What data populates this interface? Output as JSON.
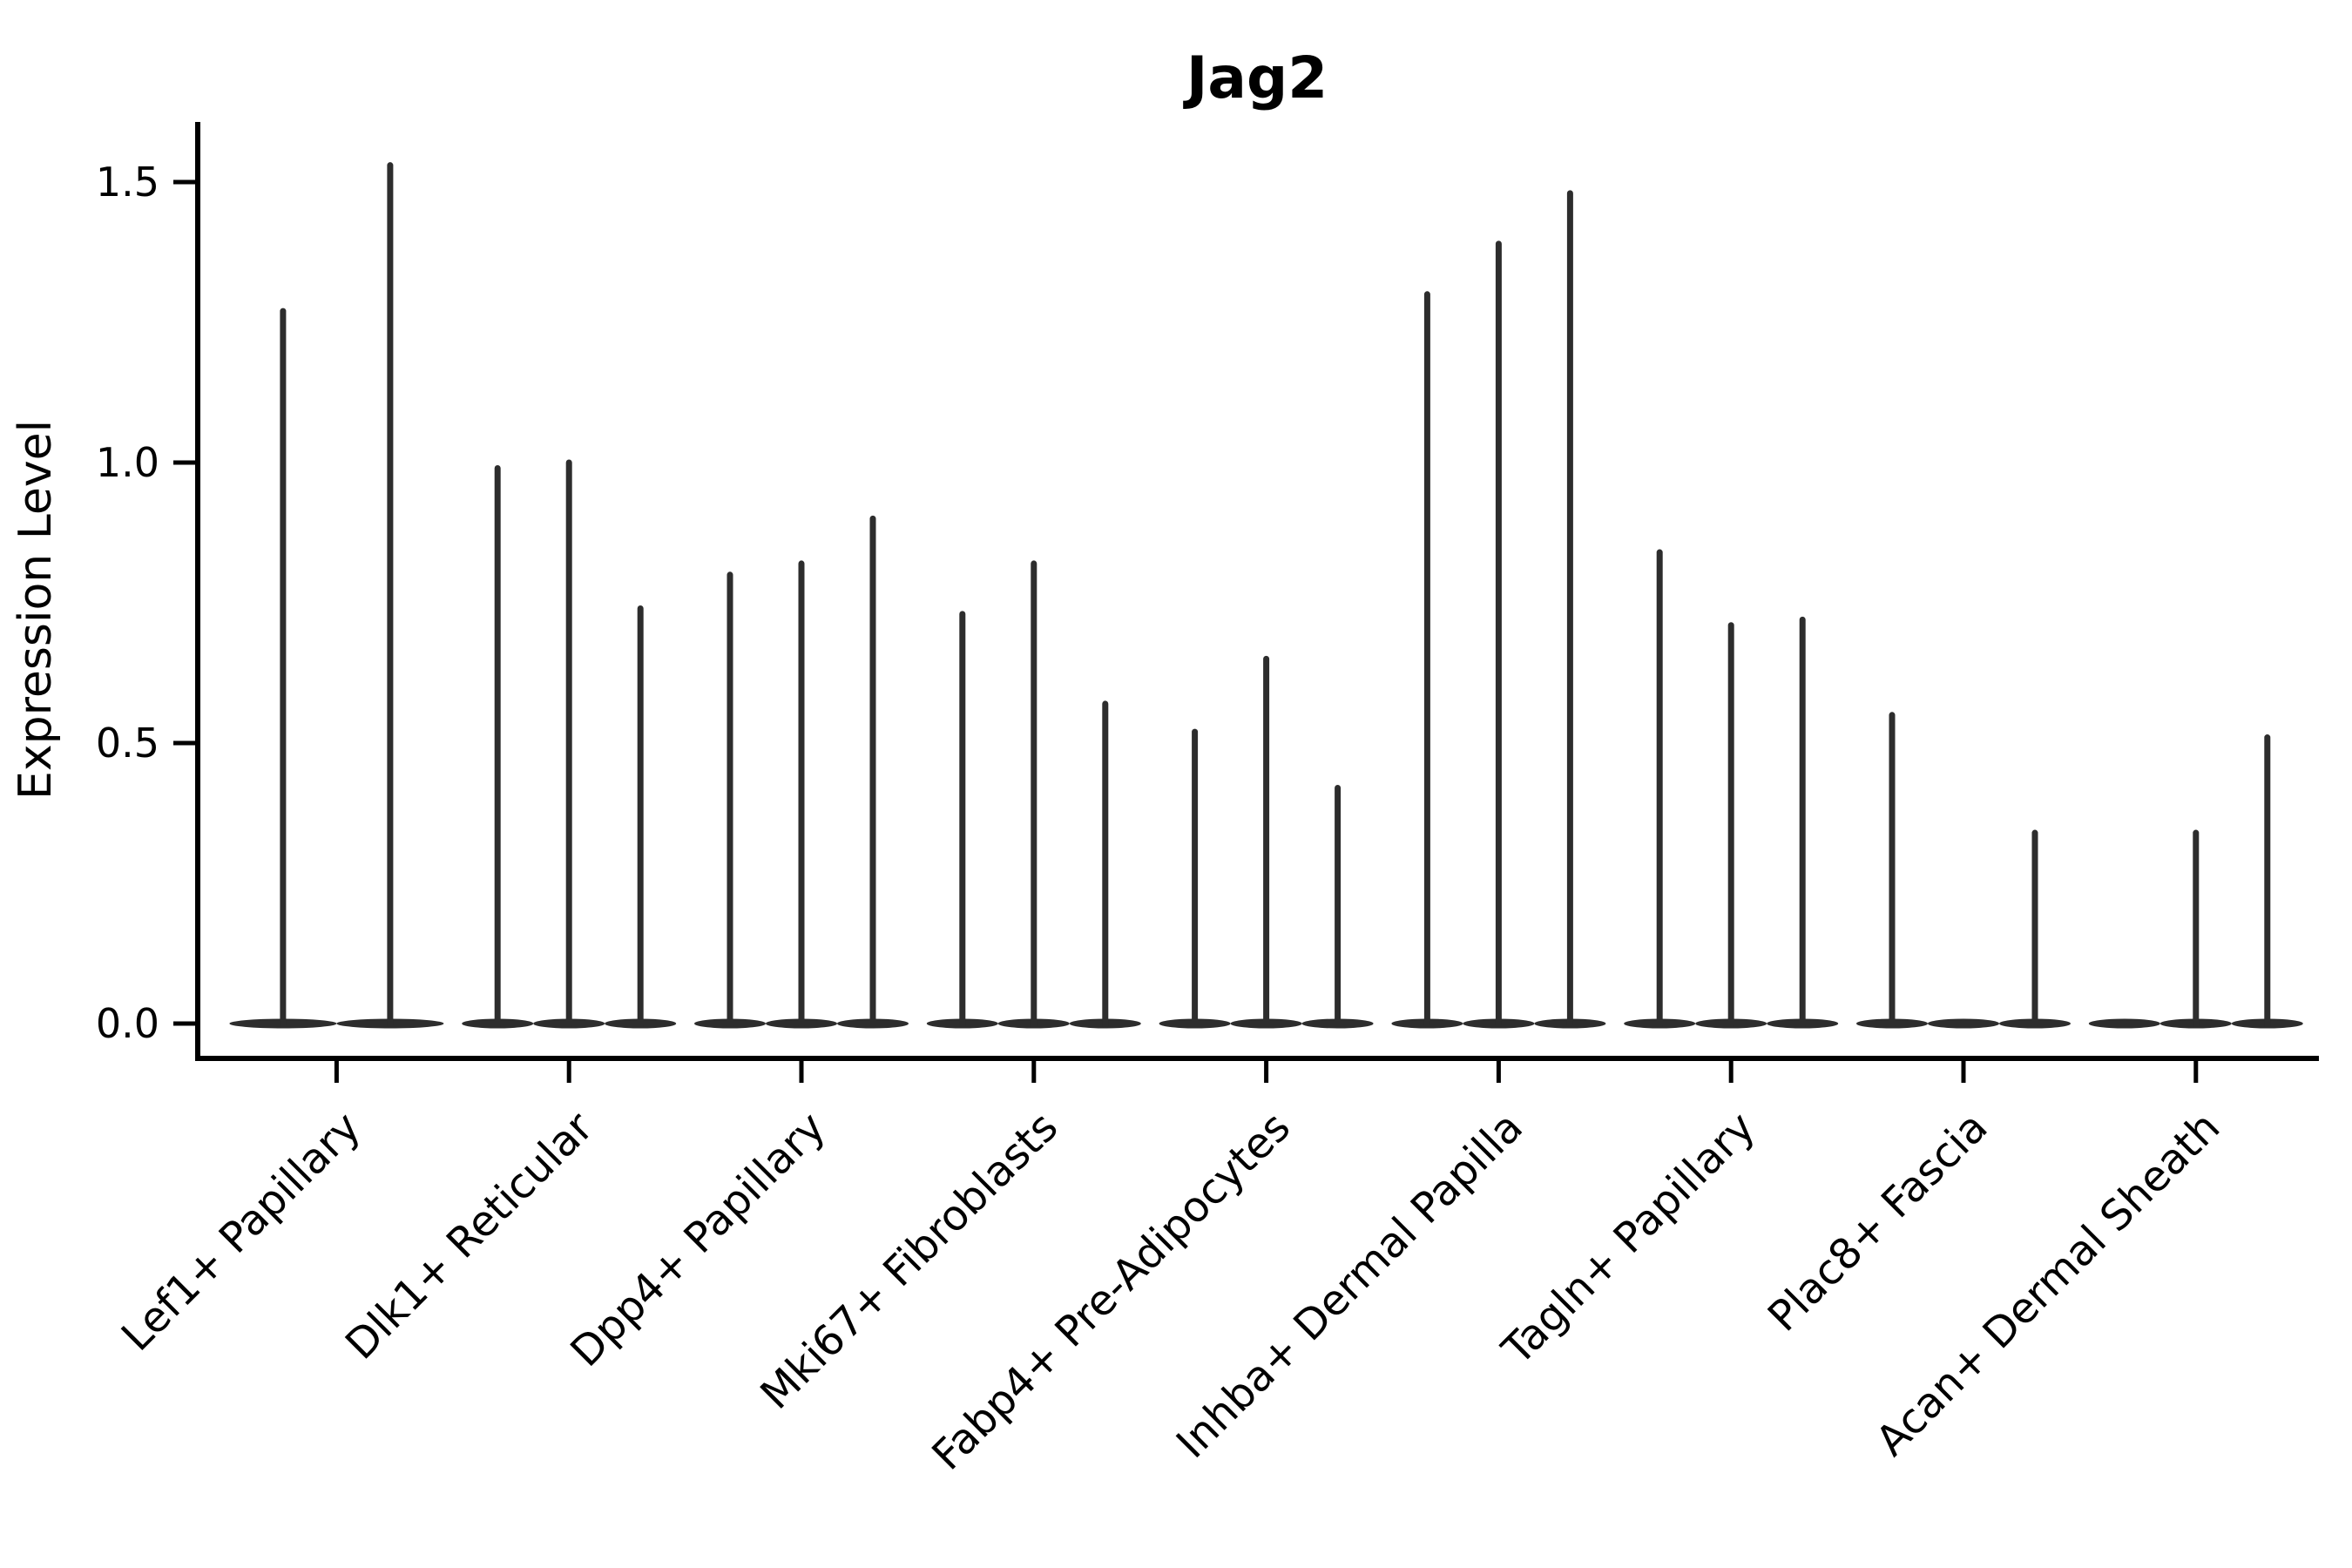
{
  "chart_data": {
    "type": "violin",
    "title": "Jag2",
    "xlabel": "",
    "ylabel": "Expression Level",
    "ylim": [
      -0.06,
      1.61
    ],
    "yticks": [
      0.0,
      0.5,
      1.0,
      1.5
    ],
    "ytick_labels": [
      "0.0",
      "0.5",
      "1.0",
      "1.5"
    ],
    "legend": "none",
    "grid": false,
    "violin_color": "#2d2d2d",
    "axis_color": "#000000",
    "style_note": "very thin needle-like violins; flat wide base at 0 with narrow spike up to max expression; 0 max = flat violin with no spike",
    "categories": [
      "Lef1+ Papillary",
      "Dlk1+ Reticular",
      "Dpp4+ Papillary",
      "Mki67+ Fibroblasts",
      "Fabp4+ Pre-Adipocytes",
      "Inhba+ Dermal Papilla",
      "Tagln+ Papillary",
      "Plac8+ Fascia",
      "Acan+ Dermal Sheath"
    ],
    "groups": [
      {
        "category": "Lef1+ Papillary",
        "violin_max": [
          1.27,
          1.53
        ]
      },
      {
        "category": "Dlk1+ Reticular",
        "violin_max": [
          0.99,
          1.0,
          0.74
        ]
      },
      {
        "category": "Dpp4+ Papillary",
        "violin_max": [
          0.8,
          0.82,
          0.9
        ]
      },
      {
        "category": "Mki67+ Fibroblasts",
        "violin_max": [
          0.73,
          0.82,
          0.57
        ]
      },
      {
        "category": "Fabp4+ Pre-Adipocytes",
        "violin_max": [
          0.52,
          0.65,
          0.42
        ]
      },
      {
        "category": "Inhba+ Dermal Papilla",
        "violin_max": [
          1.3,
          1.39,
          1.48
        ]
      },
      {
        "category": "Tagln+ Papillary",
        "violin_max": [
          0.84,
          0.71,
          0.72
        ]
      },
      {
        "category": "Plac8+ Fascia",
        "violin_max": [
          0.55,
          0.0,
          0.34
        ]
      },
      {
        "category": "Acan+ Dermal Sheath",
        "violin_max": [
          0.0,
          0.34,
          0.51
        ]
      }
    ]
  }
}
